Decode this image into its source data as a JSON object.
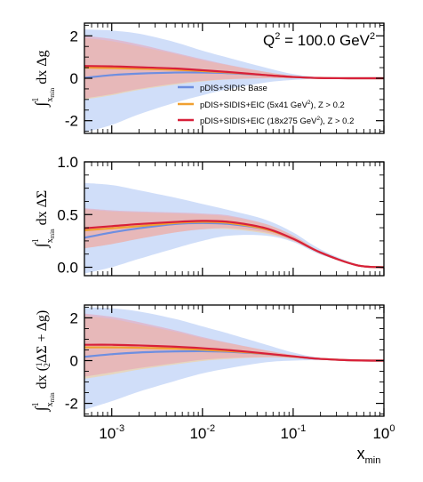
{
  "chart_data": [
    {
      "type": "line",
      "ylabel": "∫ˣₘᵢₙ¹ dx Δg",
      "ylabel_parts": [
        "∫",
        "1",
        "x",
        "min",
        "dx Δg"
      ],
      "annotation": "Q² = 100.0 GeV²",
      "annotation_parts": [
        "Q",
        "2",
        " = 100.0 GeV",
        "2"
      ],
      "xscale": "log",
      "xlim": [
        0.0005,
        1.0
      ],
      "ylim": [
        -2.6,
        2.6
      ],
      "yticks": [
        -2,
        0,
        2
      ],
      "ytick_labels": [
        "-2",
        "0",
        "2"
      ],
      "legend_position": "right-middle",
      "series": [
        {
          "name": "pDIS+SIDIS Base",
          "color": "#6e8ee0",
          "band_color": "#c8d8f8",
          "x": [
            0.0005,
            0.001,
            0.002,
            0.005,
            0.01,
            0.02,
            0.05,
            0.1,
            0.2,
            0.5,
            1.0
          ],
          "y": [
            0.02,
            0.15,
            0.22,
            0.27,
            0.27,
            0.24,
            0.15,
            0.06,
            0.01,
            0.0,
            0.0
          ],
          "band_upper": [
            2.3,
            2.25,
            2.1,
            1.7,
            1.3,
            0.95,
            0.5,
            0.2,
            0.05,
            0.01,
            0.0
          ],
          "band_lower": [
            -2.55,
            -2.2,
            -1.7,
            -1.15,
            -0.8,
            -0.5,
            -0.2,
            -0.08,
            -0.02,
            -0.01,
            0.0
          ]
        },
        {
          "name": "pDIS+SIDIS+EIC (5x41 GeV²), Z > 0.2",
          "name_parts": [
            "pDIS+SIDIS+EIC (5x41 GeV",
            "2",
            "), Z > 0.2"
          ],
          "color": "#f0a030",
          "band_color": "#f8d090",
          "x": [
            0.0005,
            0.001,
            0.002,
            0.005,
            0.01,
            0.02,
            0.05,
            0.1,
            0.2,
            0.5,
            1.0
          ],
          "y": [
            0.5,
            0.48,
            0.45,
            0.4,
            0.34,
            0.27,
            0.15,
            0.06,
            0.01,
            0.0,
            0.0
          ],
          "band_upper": [
            1.9,
            1.75,
            1.5,
            1.15,
            0.85,
            0.6,
            0.3,
            0.12,
            0.03,
            0.01,
            0.0
          ],
          "band_lower": [
            -1.0,
            -0.8,
            -0.55,
            -0.3,
            -0.15,
            -0.05,
            0.0,
            0.0,
            -0.01,
            -0.01,
            0.0
          ]
        },
        {
          "name": "pDIS+SIDIS+EIC (18x275 GeV²), Z > 0.2",
          "name_parts": [
            "pDIS+SIDIS+EIC (18x275 GeV",
            "2",
            "), Z > 0.2"
          ],
          "color": "#d8203a",
          "band_color": "#e8a0b4",
          "x": [
            0.0005,
            0.001,
            0.002,
            0.005,
            0.01,
            0.02,
            0.05,
            0.1,
            0.2,
            0.5,
            1.0
          ],
          "y": [
            0.58,
            0.56,
            0.52,
            0.46,
            0.38,
            0.29,
            0.15,
            0.06,
            0.01,
            0.0,
            0.0
          ],
          "band_upper": [
            2.0,
            1.85,
            1.6,
            1.2,
            0.9,
            0.62,
            0.3,
            0.12,
            0.03,
            0.01,
            0.0
          ],
          "band_lower": [
            -0.95,
            -0.75,
            -0.5,
            -0.25,
            -0.12,
            -0.04,
            0.0,
            0.0,
            -0.01,
            -0.01,
            0.0
          ]
        }
      ]
    },
    {
      "type": "line",
      "ylabel": "∫ˣₘᵢₙ¹ dx ΔΣ",
      "ylabel_parts": [
        "∫",
        "1",
        "x",
        "min",
        "dx ΔΣ"
      ],
      "xscale": "log",
      "xlim": [
        0.0005,
        1.0
      ],
      "ylim": [
        -0.08,
        1.0
      ],
      "yticks": [
        0.0,
        0.5,
        1.0
      ],
      "ytick_labels": [
        "0.0",
        "0.5",
        "1.0"
      ],
      "series": [
        {
          "name": "pDIS+SIDIS Base",
          "color": "#6e8ee0",
          "band_color": "#c8d8f8",
          "x": [
            0.0005,
            0.001,
            0.002,
            0.005,
            0.01,
            0.02,
            0.05,
            0.1,
            0.2,
            0.5,
            1.0
          ],
          "y": [
            0.28,
            0.33,
            0.37,
            0.41,
            0.42,
            0.41,
            0.36,
            0.27,
            0.14,
            0.02,
            0.0
          ],
          "band_upper": [
            0.8,
            0.78,
            0.73,
            0.66,
            0.6,
            0.54,
            0.45,
            0.33,
            0.17,
            0.03,
            0.0
          ],
          "band_lower": [
            -0.06,
            0.0,
            0.08,
            0.18,
            0.25,
            0.3,
            0.3,
            0.24,
            0.12,
            0.02,
            0.0
          ]
        },
        {
          "name": "pDIS+SIDIS+EIC (5x41 GeV²), Z > 0.2",
          "color": "#f0a030",
          "band_color": "#f8d090",
          "x": [
            0.0005,
            0.001,
            0.002,
            0.005,
            0.01,
            0.02,
            0.05,
            0.1,
            0.2,
            0.5,
            1.0
          ],
          "y": [
            0.35,
            0.37,
            0.39,
            0.42,
            0.43,
            0.42,
            0.36,
            0.27,
            0.14,
            0.02,
            0.0
          ],
          "band_upper": [
            0.55,
            0.53,
            0.52,
            0.51,
            0.5,
            0.48,
            0.41,
            0.3,
            0.15,
            0.02,
            0.0
          ],
          "band_lower": [
            0.18,
            0.22,
            0.27,
            0.33,
            0.36,
            0.36,
            0.32,
            0.25,
            0.13,
            0.02,
            0.0
          ]
        },
        {
          "name": "pDIS+SIDIS+EIC (18x275 GeV²), Z > 0.2",
          "color": "#d8203a",
          "band_color": "#e8a0b4",
          "x": [
            0.0005,
            0.001,
            0.002,
            0.005,
            0.01,
            0.02,
            0.05,
            0.1,
            0.2,
            0.5,
            1.0
          ],
          "y": [
            0.37,
            0.39,
            0.41,
            0.43,
            0.44,
            0.43,
            0.37,
            0.27,
            0.14,
            0.02,
            0.0
          ],
          "band_upper": [
            0.56,
            0.54,
            0.53,
            0.52,
            0.51,
            0.49,
            0.41,
            0.3,
            0.15,
            0.02,
            0.0
          ],
          "band_lower": [
            0.18,
            0.22,
            0.27,
            0.33,
            0.36,
            0.37,
            0.33,
            0.25,
            0.13,
            0.02,
            0.0
          ]
        }
      ]
    },
    {
      "type": "line",
      "ylabel": "∫ˣₘᵢₙ¹ dx (½ΔΣ + Δg)",
      "ylabel_parts": [
        "∫",
        "1",
        "x",
        "min",
        "dx (",
        "1",
        "2",
        "ΔΣ + Δg)"
      ],
      "xlabel": "xmin",
      "xlabel_parts": [
        "x",
        "min"
      ],
      "xscale": "log",
      "xlim": [
        0.0005,
        1.0
      ],
      "xticks": [
        0.001,
        0.01,
        0.1,
        1.0
      ],
      "xtick_labels": [
        "10⁻³",
        "10⁻²",
        "10⁻¹",
        "10⁰"
      ],
      "xtick_label_parts": [
        [
          "10",
          "-3"
        ],
        [
          "10",
          "-2"
        ],
        [
          "10",
          "-1"
        ],
        [
          "10",
          "0"
        ]
      ],
      "ylim": [
        -2.6,
        2.6
      ],
      "yticks": [
        -2,
        0,
        2
      ],
      "ytick_labels": [
        "-2",
        "0",
        "2"
      ],
      "series": [
        {
          "name": "pDIS+SIDIS Base",
          "color": "#6e8ee0",
          "band_color": "#c8d8f8",
          "x": [
            0.0005,
            0.001,
            0.002,
            0.005,
            0.01,
            0.02,
            0.05,
            0.1,
            0.2,
            0.5,
            1.0
          ],
          "y": [
            0.18,
            0.3,
            0.38,
            0.43,
            0.44,
            0.41,
            0.31,
            0.19,
            0.08,
            0.01,
            0.0
          ],
          "band_upper": [
            2.5,
            2.45,
            2.3,
            1.95,
            1.6,
            1.25,
            0.75,
            0.38,
            0.13,
            0.02,
            0.0
          ],
          "band_lower": [
            -2.3,
            -1.9,
            -1.45,
            -0.95,
            -0.6,
            -0.35,
            -0.08,
            0.0,
            0.02,
            0.0,
            0.0
          ]
        },
        {
          "name": "pDIS+SIDIS+EIC (5x41 GeV²), Z > 0.2",
          "color": "#f0a030",
          "band_color": "#f8d090",
          "x": [
            0.0005,
            0.001,
            0.002,
            0.005,
            0.01,
            0.02,
            0.05,
            0.1,
            0.2,
            0.5,
            1.0
          ],
          "y": [
            0.62,
            0.62,
            0.6,
            0.56,
            0.51,
            0.44,
            0.32,
            0.19,
            0.08,
            0.01,
            0.0
          ],
          "band_upper": [
            2.1,
            1.95,
            1.7,
            1.35,
            1.05,
            0.8,
            0.48,
            0.26,
            0.1,
            0.01,
            0.0
          ],
          "band_lower": [
            -0.85,
            -0.65,
            -0.42,
            -0.18,
            -0.02,
            0.08,
            0.15,
            0.12,
            0.06,
            0.0,
            0.0
          ]
        },
        {
          "name": "pDIS+SIDIS+EIC (18x275 GeV²), Z > 0.2",
          "color": "#d8203a",
          "band_color": "#e8a0b4",
          "x": [
            0.0005,
            0.001,
            0.002,
            0.005,
            0.01,
            0.02,
            0.05,
            0.1,
            0.2,
            0.5,
            1.0
          ],
          "y": [
            0.74,
            0.74,
            0.71,
            0.65,
            0.58,
            0.49,
            0.33,
            0.2,
            0.08,
            0.01,
            0.0
          ],
          "band_upper": [
            2.2,
            2.05,
            1.8,
            1.42,
            1.1,
            0.82,
            0.48,
            0.26,
            0.1,
            0.01,
            0.0
          ],
          "band_lower": [
            -0.75,
            -0.55,
            -0.35,
            -0.12,
            0.04,
            0.12,
            0.16,
            0.13,
            0.06,
            0.0,
            0.0
          ]
        }
      ]
    }
  ]
}
